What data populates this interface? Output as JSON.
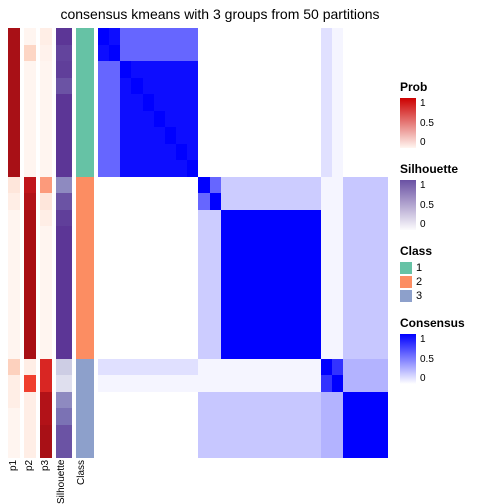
{
  "title": "consensus kmeans with 3 groups from 50 partitions",
  "title_fontsize": 14,
  "background_color": "#ffffff",
  "annotation_cols": [
    {
      "key": "p1",
      "label": "p1",
      "width": 12,
      "type": "continuous",
      "palette": [
        "#fff5f0",
        "#fee0d2",
        "#fcbba1",
        "#fc9272",
        "#fb6a4a",
        "#ef3b2c",
        "#cb181d",
        "#a50f15"
      ]
    },
    {
      "key": "p2",
      "label": "p2",
      "width": 12,
      "type": "continuous",
      "palette": [
        "#fff5f0",
        "#fee0d2",
        "#fcbba1",
        "#fc9272",
        "#fb6a4a",
        "#ef3b2c",
        "#cb181d",
        "#a50f15"
      ]
    },
    {
      "key": "p3",
      "label": "p3",
      "width": 12,
      "type": "continuous",
      "palette": [
        "#fff5f0",
        "#fee0d2",
        "#fcbba1",
        "#fc9272",
        "#fb6a4a",
        "#ef3b2c",
        "#cb181d",
        "#a50f15"
      ]
    },
    {
      "key": "sil",
      "label": "Silhouette",
      "width": 16,
      "type": "continuous",
      "palette": [
        "#fcfbfd",
        "#efedf5",
        "#dadaeb",
        "#bcbddc",
        "#9e9ac8",
        "#807dba",
        "#6a51a3",
        "#54278f"
      ]
    },
    {
      "key": "cls",
      "label": "Class",
      "width": 18,
      "type": "discrete",
      "palette": {
        "1": "#66c2a5",
        "2": "#fc8d62",
        "3": "#8da0cb"
      }
    }
  ],
  "rows": [
    {
      "p1": 0.99,
      "p2": 0.0,
      "p3": 0.05,
      "sil": 0.95,
      "cls": 1
    },
    {
      "p1": 0.99,
      "p2": 0.18,
      "p3": 0.02,
      "sil": 0.9,
      "cls": 1
    },
    {
      "p1": 0.99,
      "p2": 0.0,
      "p3": 0.0,
      "sil": 0.92,
      "cls": 1
    },
    {
      "p1": 0.99,
      "p2": 0.0,
      "p3": 0.0,
      "sil": 0.85,
      "cls": 1
    },
    {
      "p1": 0.99,
      "p2": 0.0,
      "p3": 0.0,
      "sil": 0.95,
      "cls": 1
    },
    {
      "p1": 0.99,
      "p2": 0.0,
      "p3": 0.0,
      "sil": 0.95,
      "cls": 1
    },
    {
      "p1": 0.99,
      "p2": 0.0,
      "p3": 0.0,
      "sil": 0.95,
      "cls": 1
    },
    {
      "p1": 0.99,
      "p2": 0.0,
      "p3": 0.0,
      "sil": 0.95,
      "cls": 1
    },
    {
      "p1": 0.99,
      "p2": 0.0,
      "p3": 0.0,
      "sil": 0.95,
      "cls": 1
    },
    {
      "p1": 0.1,
      "p2": 0.9,
      "p3": 0.4,
      "sil": 0.65,
      "cls": 2
    },
    {
      "p1": 0.05,
      "p2": 0.95,
      "p3": 0.1,
      "sil": 0.85,
      "cls": 2
    },
    {
      "p1": 0.0,
      "p2": 0.99,
      "p3": 0.05,
      "sil": 0.92,
      "cls": 2
    },
    {
      "p1": 0.0,
      "p2": 0.99,
      "p3": 0.0,
      "sil": 0.95,
      "cls": 2
    },
    {
      "p1": 0.0,
      "p2": 0.99,
      "p3": 0.0,
      "sil": 0.95,
      "cls": 2
    },
    {
      "p1": 0.0,
      "p2": 0.99,
      "p3": 0.0,
      "sil": 0.95,
      "cls": 2
    },
    {
      "p1": 0.0,
      "p2": 0.99,
      "p3": 0.0,
      "sil": 0.95,
      "cls": 2
    },
    {
      "p1": 0.0,
      "p2": 0.99,
      "p3": 0.0,
      "sil": 0.95,
      "cls": 2
    },
    {
      "p1": 0.0,
      "p2": 0.99,
      "p3": 0.0,
      "sil": 0.95,
      "cls": 2
    },
    {
      "p1": 0.0,
      "p2": 0.99,
      "p3": 0.0,
      "sil": 0.95,
      "cls": 2
    },
    {
      "p1": 0.0,
      "p2": 0.99,
      "p3": 0.0,
      "sil": 0.95,
      "cls": 2
    },
    {
      "p1": 0.2,
      "p2": 0.05,
      "p3": 0.8,
      "sil": 0.35,
      "cls": 3
    },
    {
      "p1": 0.05,
      "p2": 0.7,
      "p3": 0.8,
      "sil": 0.25,
      "cls": 3
    },
    {
      "p1": 0.05,
      "p2": 0.05,
      "p3": 0.95,
      "sil": 0.65,
      "cls": 3
    },
    {
      "p1": 0.0,
      "p2": 0.05,
      "p3": 0.95,
      "sil": 0.75,
      "cls": 3
    },
    {
      "p1": 0.0,
      "p2": 0.05,
      "p3": 0.99,
      "sil": 0.85,
      "cls": 3
    },
    {
      "p1": 0.0,
      "p2": 0.05,
      "p3": 0.99,
      "sil": 0.85,
      "cls": 3
    }
  ],
  "heatmap": {
    "palette_low": "#ffffff",
    "palette_high": "#0000ff",
    "blocks": [
      {
        "r0": 0,
        "r1": 1,
        "c0": 0,
        "c1": 1,
        "v": 0.95
      },
      {
        "r0": 0,
        "r1": 1,
        "c0": 2,
        "c1": 8,
        "v": 0.6
      },
      {
        "r0": 2,
        "r1": 8,
        "c0": 0,
        "c1": 1,
        "v": 0.6
      },
      {
        "r0": 2,
        "r1": 8,
        "c0": 2,
        "c1": 8,
        "v": 0.95
      },
      {
        "r0": 0,
        "r1": 8,
        "c0": 20,
        "c1": 20,
        "v": 0.12
      },
      {
        "r0": 0,
        "r1": 8,
        "c0": 21,
        "c1": 21,
        "v": 0.04
      },
      {
        "r0": 20,
        "r1": 20,
        "c0": 0,
        "c1": 8,
        "v": 0.12
      },
      {
        "r0": 21,
        "r1": 21,
        "c0": 0,
        "c1": 8,
        "v": 0.04
      },
      {
        "r0": 9,
        "r1": 10,
        "c0": 9,
        "c1": 10,
        "v": 0.6
      },
      {
        "r0": 9,
        "r1": 10,
        "c0": 11,
        "c1": 19,
        "v": 0.2
      },
      {
        "r0": 11,
        "r1": 19,
        "c0": 9,
        "c1": 10,
        "v": 0.2
      },
      {
        "r0": 11,
        "r1": 19,
        "c0": 11,
        "c1": 19,
        "v": 1.0
      },
      {
        "r0": 9,
        "r1": 19,
        "c0": 20,
        "c1": 21,
        "v": 0.04
      },
      {
        "r0": 20,
        "r1": 21,
        "c0": 9,
        "c1": 19,
        "v": 0.04
      },
      {
        "r0": 9,
        "r1": 19,
        "c0": 22,
        "c1": 25,
        "v": 0.22
      },
      {
        "r0": 22,
        "r1": 25,
        "c0": 9,
        "c1": 19,
        "v": 0.22
      },
      {
        "r0": 20,
        "r1": 21,
        "c0": 20,
        "c1": 21,
        "v": 0.8
      },
      {
        "r0": 20,
        "r1": 21,
        "c0": 22,
        "c1": 25,
        "v": 0.3
      },
      {
        "r0": 22,
        "r1": 25,
        "c0": 20,
        "c1": 21,
        "v": 0.3
      },
      {
        "r0": 22,
        "r1": 25,
        "c0": 22,
        "c1": 25,
        "v": 1.0
      }
    ]
  },
  "legends": {
    "prob": {
      "title": "Prob",
      "ticks": [
        "1",
        "0.5",
        "0"
      ],
      "grad": [
        "#cc0000",
        "#fff5f0"
      ]
    },
    "silhouette": {
      "title": "Silhouette",
      "ticks": [
        "1",
        "0.5",
        "0"
      ],
      "grad": [
        "#6a51a3",
        "#fcfbfd"
      ]
    },
    "class": {
      "title": "Class",
      "items": [
        {
          "label": "1",
          "color": "#66c2a5"
        },
        {
          "label": "2",
          "color": "#fc8d62"
        },
        {
          "label": "3",
          "color": "#8da0cb"
        }
      ]
    },
    "consensus": {
      "title": "Consensus",
      "ticks": [
        "1",
        "0.5",
        "0"
      ],
      "grad": [
        "#0000ff",
        "#ffffff"
      ]
    }
  }
}
